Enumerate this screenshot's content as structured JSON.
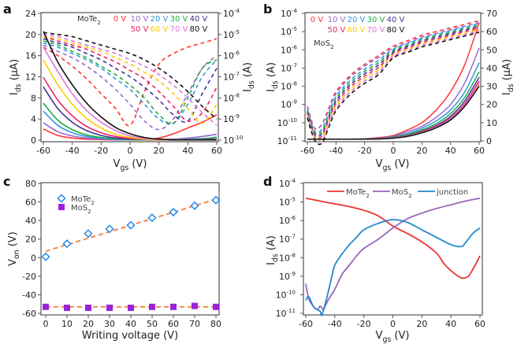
{
  "chart_data": [
    {
      "panel": "a",
      "type": "line",
      "xlabel": "Vgs (V)",
      "ylabel_left": "Ids (μA)",
      "ylabel_right": "Ids (A)",
      "xlim": [
        -60,
        60
      ],
      "ylim_left": [
        0,
        24
      ],
      "ylim_right_log": [
        -10,
        -4
      ],
      "xticks": [
        -60,
        -40,
        -20,
        0,
        20,
        40,
        60
      ],
      "yticks_left": [
        0,
        4,
        8,
        12,
        16,
        20,
        24
      ],
      "yticks_right": [
        "10^-10",
        "10^-9",
        "10^-8",
        "10^-7",
        "10^-6",
        "10^-5",
        "10^-4"
      ],
      "legend_title": "MoTe2",
      "legend_position": "top-right",
      "x": [
        -60,
        -50,
        -40,
        -30,
        -20,
        -10,
        0,
        10,
        20,
        30,
        40,
        50,
        60
      ],
      "series": [
        {
          "name": "0 V",
          "color": "#ff3333",
          "linear_uA": [
            2.1,
            0.9,
            0.4,
            0.2,
            0.1,
            0.05,
            0.05,
            0.1,
            0.4,
            1.2,
            2.3,
            3.4,
            4.8
          ],
          "log_A_exp": [
            -5.6,
            -6.0,
            -6.5,
            -7.1,
            -7.8,
            -8.5,
            -9.3,
            -7.7,
            -6.4,
            -5.9,
            -5.6,
            -5.4,
            -5.2
          ]
        },
        {
          "name": "10 V",
          "color": "#9966cc",
          "linear_uA": [
            3.3,
            1.6,
            0.8,
            0.4,
            0.2,
            0.1,
            0.05,
            0.05,
            0.1,
            0.2,
            0.4,
            0.7,
            1.1
          ],
          "log_A_exp": [
            -5.5,
            -5.8,
            -6.1,
            -6.5,
            -7.0,
            -7.6,
            -8.3,
            -9.1,
            -9.5,
            -9.0,
            -7.8,
            -6.6,
            -6.0
          ]
        },
        {
          "name": "20 V",
          "color": "#3399dd",
          "linear_uA": [
            5.5,
            2.8,
            1.4,
            0.7,
            0.35,
            0.15,
            0.08,
            0.05,
            0.05,
            0.1,
            0.2,
            0.3,
            0.5
          ],
          "log_A_exp": [
            -5.4,
            -5.6,
            -5.9,
            -6.2,
            -6.6,
            -7.1,
            -7.6,
            -8.3,
            -9.0,
            -9.2,
            -8.3,
            -7.0,
            -6.2
          ]
        },
        {
          "name": "30 V",
          "color": "#22aa44",
          "linear_uA": [
            7.0,
            3.8,
            2.0,
            1.0,
            0.5,
            0.25,
            0.1,
            0.05,
            0.05,
            0.05,
            0.1,
            0.2,
            0.6
          ],
          "log_A_exp": [
            -5.3,
            -5.5,
            -5.8,
            -6.1,
            -6.5,
            -6.9,
            -7.4,
            -8.0,
            -8.8,
            -9.2,
            -8.0,
            -6.6,
            -6.2
          ]
        },
        {
          "name": "40 V",
          "color": "#443399",
          "linear_uA": [
            10.1,
            6.0,
            3.4,
            1.8,
            0.9,
            0.4,
            0.2,
            0.1,
            0.05,
            0.05,
            0.05,
            0.1,
            0.2
          ],
          "log_A_exp": [
            -5.2,
            -5.4,
            -5.6,
            -5.9,
            -6.2,
            -6.6,
            -7.0,
            -7.5,
            -8.1,
            -8.8,
            -9.1,
            -7.8,
            -6.6
          ]
        },
        {
          "name": "50 V",
          "color": "#ee2266",
          "linear_uA": [
            11.9,
            7.6,
            4.6,
            2.6,
            1.4,
            0.7,
            0.3,
            0.15,
            0.05,
            0.05,
            0.05,
            0.05,
            0.1
          ],
          "log_A_exp": [
            -5.1,
            -5.3,
            -5.5,
            -5.7,
            -6.0,
            -6.3,
            -6.7,
            -7.1,
            -7.7,
            -8.4,
            -9.1,
            -8.7,
            -7.5
          ]
        },
        {
          "name": "60 V",
          "color": "#ffcc00",
          "linear_uA": [
            15.2,
            10.5,
            6.8,
            4.1,
            2.3,
            1.1,
            0.5,
            0.2,
            0.1,
            0.05,
            0.05,
            0.05,
            0.05
          ],
          "log_A_exp": [
            -5.1,
            -5.2,
            -5.4,
            -5.6,
            -5.8,
            -6.1,
            -6.4,
            -6.8,
            -7.2,
            -7.8,
            -8.5,
            -9.2,
            -8.3
          ]
        },
        {
          "name": "70 V",
          "color": "#dd77dd",
          "linear_uA": [
            17.6,
            13.0,
            8.8,
            5.6,
            3.4,
            1.8,
            0.8,
            0.35,
            0.15,
            0.05,
            0.05,
            0.05,
            0.05
          ],
          "log_A_exp": [
            -5.0,
            -5.1,
            -5.3,
            -5.5,
            -5.7,
            -5.9,
            -6.2,
            -6.5,
            -6.9,
            -7.4,
            -8.0,
            -8.7,
            -9.3
          ]
        },
        {
          "name": "80 V",
          "color": "#111111",
          "linear_uA": [
            20.6,
            14.8,
            10.5,
            7.0,
            4.4,
            2.4,
            1.2,
            0.5,
            0.2,
            0.05,
            0.05,
            0.05,
            0.05
          ],
          "log_A_exp": [
            -4.9,
            -5.0,
            -5.1,
            -5.3,
            -5.5,
            -5.7,
            -5.9,
            -6.2,
            -6.6,
            -7.1,
            -7.7,
            -8.4,
            -9.0
          ]
        }
      ]
    },
    {
      "panel": "b",
      "type": "line",
      "xlabel": "Vgs (V)",
      "ylabel_left": "Ids (A)",
      "ylabel_right": "Ids (μA)",
      "xlim": [
        -60,
        60
      ],
      "ylim_left_log": [
        -11,
        -4
      ],
      "ylim_right": [
        0,
        70
      ],
      "xticks": [
        -60,
        -40,
        -20,
        0,
        20,
        40,
        60
      ],
      "yticks_left": [
        "10^-11",
        "10^-10",
        "10^-9",
        "10^-8",
        "10^-7",
        "10^-6",
        "10^-5",
        "10^-4"
      ],
      "yticks_right": [
        0,
        10,
        20,
        30,
        40,
        50,
        60,
        70
      ],
      "legend_title": "MoS2",
      "legend_position": "top-left",
      "x": [
        -60,
        -55,
        -50,
        -45,
        -40,
        -30,
        -20,
        -10,
        0,
        10,
        20,
        30,
        40,
        50,
        60
      ],
      "series": [
        {
          "name": "0 V",
          "color": "#ff3333",
          "linear_uA": [
            1,
            1,
            1,
            1,
            1,
            1,
            1.2,
            1.8,
            3,
            6,
            10,
            17,
            27,
            42,
            65
          ],
          "log_A_exp": [
            -9.1,
            -10.3,
            -10.1,
            -9.2,
            -8.3,
            -7.4,
            -6.8,
            -6.3,
            -5.8,
            -5.5,
            -5.2,
            -5.0,
            -4.8,
            -4.6,
            -4.4
          ]
        },
        {
          "name": "10 V",
          "color": "#9966cc",
          "linear_uA": [
            1,
            1,
            1,
            1,
            1,
            1,
            1.1,
            1.5,
            2.5,
            5,
            8,
            13,
            20,
            32,
            51
          ],
          "log_A_exp": [
            -9.1,
            -10.3,
            -10.1,
            -9.3,
            -8.4,
            -7.5,
            -6.9,
            -6.4,
            -5.9,
            -5.6,
            -5.3,
            -5.1,
            -4.9,
            -4.7,
            -4.5
          ]
        },
        {
          "name": "20 V",
          "color": "#3399dd",
          "linear_uA": [
            1,
            1,
            1,
            1,
            1,
            1,
            1.1,
            1.4,
            2.2,
            4,
            7,
            11,
            17,
            27,
            43
          ]
        },
        {
          "name": "30 V",
          "color": "#22aa44",
          "linear_uA": [
            1,
            1,
            1,
            1,
            1,
            1,
            1,
            1.3,
            2,
            3.5,
            6,
            9.5,
            15,
            24,
            38
          ]
        },
        {
          "name": "40 V",
          "color": "#443399",
          "linear_uA": [
            1,
            1,
            1,
            1,
            1,
            1,
            1,
            1.2,
            1.8,
            3,
            5.3,
            8.5,
            13.5,
            22,
            35
          ]
        },
        {
          "name": "50 V",
          "color": "#ee2266",
          "linear_uA": [
            1,
            1,
            1,
            1,
            1,
            1,
            1,
            1.2,
            1.7,
            2.8,
            5,
            8,
            12.5,
            20.5,
            33
          ]
        },
        {
          "name": "60 V",
          "color": "#ffcc00",
          "linear_uA": [
            1,
            1,
            1,
            1,
            1,
            1,
            1,
            1.1,
            1.6,
            2.6,
            4.6,
            7.5,
            12,
            19.5,
            31
          ]
        },
        {
          "name": "70 V",
          "color": "#dd77dd",
          "linear_uA": [
            1,
            1,
            1,
            1,
            1,
            1,
            1,
            1.1,
            1.6,
            2.6,
            4.6,
            7.5,
            12,
            19.5,
            32
          ]
        },
        {
          "name": "80 V",
          "color": "#111111",
          "linear_uA": [
            1,
            1,
            1,
            1,
            1,
            1,
            1,
            1.1,
            1.5,
            2.5,
            4.4,
            7.2,
            11.5,
            19,
            30
          ]
        }
      ]
    },
    {
      "panel": "c",
      "type": "scatter",
      "xlabel": "Writing voltage (V)",
      "ylabel": "Von (V)",
      "xlim": [
        -2,
        82
      ],
      "ylim": [
        -60,
        80
      ],
      "xticks": [
        0,
        10,
        20,
        30,
        40,
        50,
        60,
        70,
        80
      ],
      "yticks": [
        -60,
        -40,
        -20,
        0,
        20,
        40,
        60,
        80
      ],
      "legend_position": "top-left",
      "x": [
        0,
        10,
        20,
        30,
        40,
        50,
        60,
        70,
        80
      ],
      "series": [
        {
          "name": "MoTe2",
          "marker": "open-diamond",
          "color": "#2288ee",
          "values": [
            1,
            15,
            26,
            31,
            35,
            43,
            49,
            56,
            62
          ],
          "fit": [
            7,
            63
          ]
        },
        {
          "name": "MoS2",
          "marker": "filled-square",
          "color": "#9922dd",
          "values": [
            -53,
            -54,
            -54,
            -54,
            -54,
            -53,
            -53,
            -52,
            -53
          ],
          "fit": [
            -53,
            -53
          ]
        }
      ],
      "fit_color": "#f4874a"
    },
    {
      "panel": "d",
      "type": "line",
      "xlabel": "Vgs (V)",
      "ylabel": "Ids (A)",
      "xlim": [
        -60,
        60
      ],
      "ylim_log": [
        -11.2,
        -4
      ],
      "xticks": [
        -60,
        -40,
        -20,
        0,
        20,
        40,
        60
      ],
      "yticks": [
        "10^-11",
        "10^-10",
        "10^-9",
        "10^-8",
        "10^-7",
        "10^-6",
        "10^-5",
        "10^-4"
      ],
      "legend_position": "top",
      "series": [
        {
          "name": "MoTe2",
          "color": "#ee3333",
          "x": [
            -60,
            -50,
            -40,
            -30,
            -20,
            -10,
            0,
            10,
            20,
            30,
            35,
            40,
            45,
            48,
            52,
            56,
            60
          ],
          "log_A_exp": [
            -4.8,
            -4.95,
            -5.1,
            -5.25,
            -5.45,
            -5.75,
            -6.3,
            -6.7,
            -7.15,
            -7.75,
            -8.3,
            -8.7,
            -9.0,
            -9.1,
            -9.0,
            -8.5,
            -7.9
          ]
        },
        {
          "name": "MoS2",
          "color": "#9966bb",
          "x": [
            -60,
            -58,
            -55,
            -52,
            -50,
            -48,
            -46,
            -44,
            -40,
            -35,
            -30,
            -25,
            -20,
            -10,
            0,
            10,
            20,
            30,
            40,
            50,
            60
          ],
          "log_A_exp": [
            -9.4,
            -10.2,
            -10.6,
            -10.8,
            -10.6,
            -10.8,
            -10.5,
            -10.2,
            -9.7,
            -8.9,
            -8.4,
            -7.9,
            -7.5,
            -7.0,
            -6.4,
            -5.9,
            -5.6,
            -5.35,
            -5.15,
            -4.95,
            -4.8
          ]
        },
        {
          "name": "junction",
          "color": "#2288cc",
          "x": [
            -60,
            -58,
            -55,
            -52,
            -50,
            -49,
            -47,
            -45,
            -42,
            -40,
            -35,
            -30,
            -25,
            -20,
            -10,
            0,
            10,
            20,
            30,
            40,
            47,
            50,
            55,
            60
          ],
          "log_A_exp": [
            -10.3,
            -10.1,
            -10.6,
            -10.8,
            -10.9,
            -11.1,
            -10.6,
            -10.0,
            -9.0,
            -8.4,
            -7.8,
            -7.3,
            -6.9,
            -6.5,
            -6.15,
            -5.95,
            -6.1,
            -6.5,
            -6.9,
            -7.3,
            -7.4,
            -7.2,
            -6.7,
            -6.4
          ]
        }
      ]
    }
  ],
  "panels": {
    "a": {
      "label": "a",
      "xlabel": "V",
      "xlabel_sub": "gs",
      "xlabel_unit": " (V)",
      "ylabel_left": "I",
      "ylabel_left_sub": "ds",
      "ylabel_left_unit": " (μA)",
      "ylabel_right": "I",
      "ylabel_right_sub": "ds",
      "ylabel_right_unit": " (A)",
      "legend_title": "MoTe",
      "legend_title_sub": "2"
    },
    "b": {
      "label": "b",
      "xlabel": "V",
      "xlabel_sub": "gs",
      "xlabel_unit": " (V)",
      "ylabel_left": "I",
      "ylabel_left_sub": "ds",
      "ylabel_left_unit": " (A)",
      "ylabel_right": "I",
      "ylabel_right_sub": "ds",
      "ylabel_right_unit": " (μA)",
      "legend_title": "MoS",
      "legend_title_sub": "2"
    },
    "c": {
      "label": "c",
      "xlabel": "Writing voltage (V)",
      "ylabel": "V",
      "ylabel_sub": "on",
      "ylabel_unit": " (V)",
      "legend": [
        {
          "name": "MoTe",
          "sub": "2"
        },
        {
          "name": "MoS",
          "sub": "2"
        }
      ]
    },
    "d": {
      "label": "d",
      "xlabel": "V",
      "xlabel_sub": "gs",
      "xlabel_unit": " (V)",
      "ylabel": "I",
      "ylabel_sub": "ds",
      "ylabel_unit": " (A)",
      "legend": [
        {
          "name": "MoTe",
          "sub": "2"
        },
        {
          "name": "MoS",
          "sub": "2"
        },
        {
          "name": "junction",
          "sub": ""
        }
      ]
    }
  }
}
